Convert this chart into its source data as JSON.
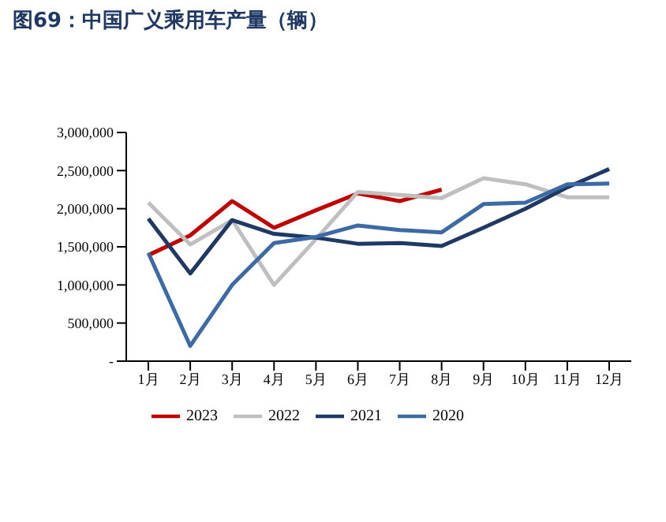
{
  "chart_data": {
    "type": "line",
    "title": "图69：中国广义乘用车产量（辆）",
    "categories": [
      "1月",
      "2月",
      "3月",
      "4月",
      "5月",
      "6月",
      "7月",
      "8月",
      "9月",
      "10月",
      "11月",
      "12月"
    ],
    "series": [
      {
        "name": "2023",
        "color": "#c00000",
        "values": [
          1390000,
          1650000,
          2100000,
          1750000,
          1980000,
          2200000,
          2100000,
          2250000,
          null,
          null,
          null,
          null
        ]
      },
      {
        "name": "2022",
        "color": "#bfbfbf",
        "values": [
          2080000,
          1530000,
          1850000,
          1000000,
          1600000,
          2220000,
          2180000,
          2140000,
          2400000,
          2320000,
          2150000,
          2150000
        ]
      },
      {
        "name": "2021",
        "color": "#1f3864",
        "values": [
          1870000,
          1150000,
          1850000,
          1670000,
          1620000,
          1540000,
          1550000,
          1510000,
          1750000,
          2000000,
          2280000,
          2520000
        ]
      },
      {
        "name": "2020",
        "color": "#3c6aa5",
        "values": [
          1420000,
          200000,
          1000000,
          1550000,
          1630000,
          1780000,
          1720000,
          1690000,
          2060000,
          2080000,
          2320000,
          2330000
        ]
      }
    ],
    "ylim": [
      0,
      3000000
    ],
    "yticks": [
      {
        "value": 0,
        "label": "-"
      },
      {
        "value": 500000,
        "label": "500,000"
      },
      {
        "value": 1000000,
        "label": "1,000,000"
      },
      {
        "value": 1500000,
        "label": "1,500,000"
      },
      {
        "value": 2000000,
        "label": "2,000,000"
      },
      {
        "value": 2500000,
        "label": "2,500,000"
      },
      {
        "value": 3000000,
        "label": "3,000,000"
      }
    ],
    "grid": false,
    "legend": "bottom",
    "marker": "none",
    "line_style": "solid"
  }
}
